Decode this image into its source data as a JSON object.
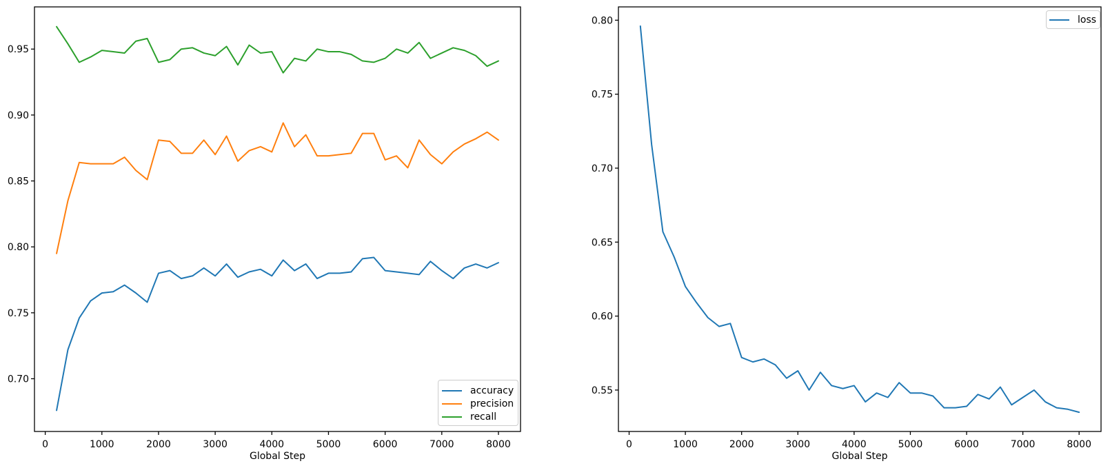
{
  "figure": {
    "background": "#ffffff",
    "axis_color": "#000000",
    "tick_label_color": "#000000"
  },
  "chart_data": [
    {
      "type": "line",
      "title": "",
      "xlabel": "Global Step",
      "ylabel": "",
      "grid": false,
      "legend_position": "lower right",
      "xlim": [
        -190,
        8390
      ],
      "ylim": [
        0.66,
        0.982
      ],
      "xticks": {
        "values": [
          0,
          1000,
          2000,
          3000,
          4000,
          5000,
          6000,
          7000,
          8000
        ],
        "labels": [
          "0",
          "1000",
          "2000",
          "3000",
          "4000",
          "5000",
          "6000",
          "7000",
          "8000"
        ]
      },
      "yticks": {
        "values": [
          0.7,
          0.75,
          0.8,
          0.85,
          0.9,
          0.95
        ],
        "labels": [
          "0.70",
          "0.75",
          "0.80",
          "0.85",
          "0.90",
          "0.95"
        ]
      },
      "x": [
        200,
        400,
        600,
        800,
        1000,
        1200,
        1400,
        1600,
        1800,
        2000,
        2200,
        2400,
        2600,
        2800,
        3000,
        3200,
        3400,
        3600,
        3800,
        4000,
        4200,
        4400,
        4600,
        4800,
        5000,
        5200,
        5400,
        5600,
        5800,
        6000,
        6200,
        6400,
        6600,
        6800,
        7000,
        7200,
        7400,
        7600,
        7800,
        8000
      ],
      "series": [
        {
          "name": "accuracy",
          "color": "#1f77b4",
          "values": [
            0.676,
            0.722,
            0.746,
            0.759,
            0.765,
            0.766,
            0.771,
            0.765,
            0.758,
            0.78,
            0.782,
            0.776,
            0.778,
            0.784,
            0.778,
            0.787,
            0.777,
            0.781,
            0.783,
            0.778,
            0.79,
            0.782,
            0.787,
            0.776,
            0.78,
            0.78,
            0.781,
            0.791,
            0.792,
            0.782,
            0.781,
            0.78,
            0.779,
            0.789,
            0.782,
            0.776,
            0.784,
            0.787,
            0.784,
            0.788
          ]
        },
        {
          "name": "precision",
          "color": "#ff7f0e",
          "values": [
            0.795,
            0.835,
            0.864,
            0.863,
            0.863,
            0.863,
            0.868,
            0.858,
            0.851,
            0.881,
            0.88,
            0.871,
            0.871,
            0.881,
            0.87,
            0.884,
            0.865,
            0.873,
            0.876,
            0.872,
            0.894,
            0.876,
            0.885,
            0.869,
            0.869,
            0.87,
            0.871,
            0.886,
            0.886,
            0.866,
            0.869,
            0.86,
            0.881,
            0.87,
            0.863,
            0.872,
            0.878,
            0.882,
            0.887,
            0.881
          ]
        },
        {
          "name": "recall",
          "color": "#2ca02c",
          "values": [
            0.967,
            0.954,
            0.94,
            0.944,
            0.949,
            0.948,
            0.947,
            0.956,
            0.958,
            0.94,
            0.942,
            0.95,
            0.951,
            0.947,
            0.945,
            0.952,
            0.938,
            0.953,
            0.947,
            0.948,
            0.932,
            0.943,
            0.941,
            0.95,
            0.948,
            0.948,
            0.946,
            0.941,
            0.94,
            0.943,
            0.95,
            0.947,
            0.955,
            0.943,
            0.947,
            0.951,
            0.949,
            0.945,
            0.937,
            0.941
          ]
        }
      ]
    },
    {
      "type": "line",
      "title": "",
      "xlabel": "Global Step",
      "ylabel": "",
      "grid": false,
      "legend_position": "upper right",
      "xlim": [
        -190,
        8390
      ],
      "ylim": [
        0.522,
        0.809
      ],
      "xticks": {
        "values": [
          0,
          1000,
          2000,
          3000,
          4000,
          5000,
          6000,
          7000,
          8000
        ],
        "labels": [
          "0",
          "1000",
          "2000",
          "3000",
          "4000",
          "5000",
          "6000",
          "7000",
          "8000"
        ]
      },
      "yticks": {
        "values": [
          0.55,
          0.6,
          0.65,
          0.7,
          0.75,
          0.8
        ],
        "labels": [
          "0.55",
          "0.60",
          "0.65",
          "0.70",
          "0.75",
          "0.80"
        ]
      },
      "x": [
        200,
        400,
        600,
        800,
        1000,
        1200,
        1400,
        1600,
        1800,
        2000,
        2200,
        2400,
        2600,
        2800,
        3000,
        3200,
        3400,
        3600,
        3800,
        4000,
        4200,
        4400,
        4600,
        4800,
        5000,
        5200,
        5400,
        5600,
        5800,
        6000,
        6200,
        6400,
        6600,
        6800,
        7000,
        7200,
        7400,
        7600,
        7800,
        8000
      ],
      "series": [
        {
          "name": "loss",
          "color": "#1f77b4",
          "values": [
            0.796,
            0.716,
            0.657,
            0.64,
            0.62,
            0.609,
            0.599,
            0.593,
            0.595,
            0.572,
            0.569,
            0.571,
            0.567,
            0.558,
            0.563,
            0.55,
            0.562,
            0.553,
            0.551,
            0.553,
            0.542,
            0.548,
            0.545,
            0.555,
            0.548,
            0.548,
            0.546,
            0.538,
            0.538,
            0.539,
            0.547,
            0.544,
            0.552,
            0.54,
            0.545,
            0.55,
            0.542,
            0.538,
            0.537,
            0.535
          ]
        }
      ]
    }
  ]
}
